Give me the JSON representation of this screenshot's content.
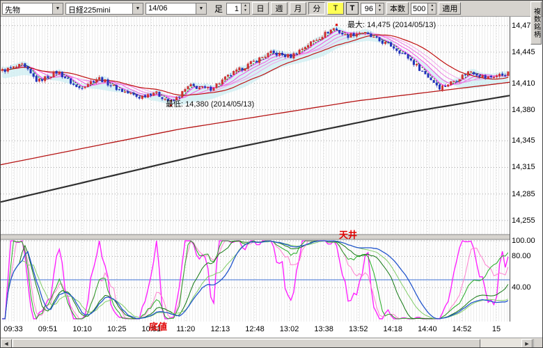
{
  "toolbar": {
    "instrument_type": "先物",
    "symbol": "日経225mini",
    "contract_month": "14/06",
    "bar_type_label": "足",
    "interval_value": "1",
    "period_day": "日",
    "period_week": "週",
    "period_month": "月",
    "period_minute": "分",
    "tick_toggle": "T",
    "t_label": "T",
    "bars_value": "96",
    "bars_button": "本数",
    "count_value": "500",
    "apply_button": "適用",
    "multi_symbol": "複数銘柄"
  },
  "icons": {
    "chevron_down": "▼",
    "spin_up": "▲",
    "spin_down": "▼",
    "arrow_left": "◀",
    "arrow_right": "▶"
  },
  "annotations": {
    "max_label": "最大: 14,475 (2014/05/13)",
    "min_label": "最低: 14,380 (2014/05/13)",
    "ceiling": "天井",
    "bottom": "底値"
  },
  "chart_data": {
    "type": "candlestick",
    "session_high": 14475,
    "session_low": 14380,
    "session_date": "2014/05/13",
    "price_range": [
      14240,
      14485
    ],
    "oscillator_range": [
      0,
      100
    ],
    "bar_count": 178,
    "price_axis": [
      {
        "label": "14,475",
        "value": 14475
      },
      {
        "label": "14,445",
        "value": 14445
      },
      {
        "label": "14,410",
        "value": 14410
      },
      {
        "label": "14,380",
        "value": 14380
      },
      {
        "label": "14,345",
        "value": 14345
      },
      {
        "label": "14,315",
        "value": 14315
      },
      {
        "label": "14,285",
        "value": 14285
      },
      {
        "label": "14,255",
        "value": 14255
      }
    ],
    "indicator_axis": [
      {
        "label": "100.00",
        "value": 100
      },
      {
        "label": "80.00",
        "value": 80
      },
      {
        "label": "40.00",
        "value": 40
      }
    ],
    "indicator_level_line": 50,
    "time_labels": [
      "09:33",
      "09:51",
      "10:10",
      "10:25",
      "10:51",
      "11:20",
      "12:13",
      "12:48",
      "13:02",
      "13:38",
      "13:52",
      "14:18",
      "14:40",
      "14:52",
      "15"
    ],
    "price_path": [
      [
        0,
        14424
      ],
      [
        0.04,
        14430
      ],
      [
        0.07,
        14412
      ],
      [
        0.11,
        14423
      ],
      [
        0.15,
        14404
      ],
      [
        0.19,
        14416
      ],
      [
        0.23,
        14403
      ],
      [
        0.27,
        14394
      ],
      [
        0.3,
        14400
      ],
      [
        0.335,
        14388
      ],
      [
        0.37,
        14407
      ],
      [
        0.41,
        14403
      ],
      [
        0.45,
        14419
      ],
      [
        0.49,
        14432
      ],
      [
        0.53,
        14444
      ],
      [
        0.57,
        14440
      ],
      [
        0.6,
        14452
      ],
      [
        0.625,
        14461
      ],
      [
        0.655,
        14472
      ],
      [
        0.68,
        14463
      ],
      [
        0.71,
        14468
      ],
      [
        0.74,
        14459
      ],
      [
        0.77,
        14452
      ],
      [
        0.8,
        14440
      ],
      [
        0.835,
        14421
      ],
      [
        0.865,
        14405
      ],
      [
        0.895,
        14413
      ],
      [
        0.925,
        14424
      ],
      [
        0.955,
        14416
      ],
      [
        1,
        14421
      ]
    ],
    "overlays": {
      "ribbon_windows": [
        5,
        9,
        13,
        17
      ],
      "ribbon_colors": [
        "#ff22ff",
        "#f055e0",
        "#ea7ce0",
        "#f2a6ea"
      ],
      "short_ma": {
        "window": 4,
        "color": "#007700"
      },
      "mid_ma": {
        "window": 24,
        "color": "#c01010"
      },
      "long_line_red": [
        [
          0,
          14318
        ],
        [
          0.35,
          14358
        ],
        [
          0.7,
          14390
        ],
        [
          1,
          14411
        ]
      ],
      "long_line_black": [
        [
          0,
          14276
        ],
        [
          0.4,
          14330
        ],
        [
          0.8,
          14377
        ],
        [
          1,
          14396
        ]
      ],
      "cloud_color": "#cdeef2"
    },
    "oscillator": {
      "series": [
        {
          "window": 10,
          "smooth": 2,
          "color": "#ff22ff",
          "width": 1.4
        },
        {
          "window": 16,
          "smooth": 4,
          "color": "#ff7fd0",
          "width": 1
        },
        {
          "window": 24,
          "smooth": 3,
          "color": "#22aa22",
          "width": 1
        },
        {
          "window": 34,
          "smooth": 7,
          "color": "#117711",
          "width": 1
        },
        {
          "window": 46,
          "smooth": 10,
          "color": "#7fcc66",
          "width": 1
        },
        {
          "window": 60,
          "smooth": 8,
          "color": "#2255cc",
          "width": 1.3
        }
      ]
    },
    "colors": {
      "up": "#d03030",
      "down": "#2233bb",
      "grid": "#a8a8a8",
      "level_line": "#3b6fd4"
    }
  }
}
